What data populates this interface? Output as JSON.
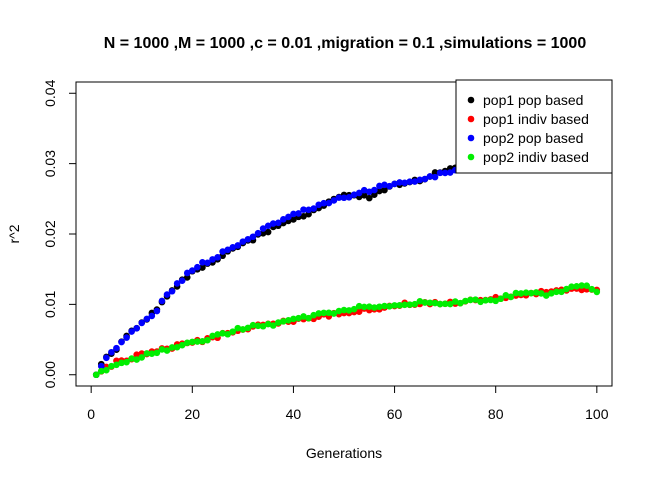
{
  "chart_data": {
    "type": "scatter",
    "title": "N = 1000 ,M = 1000 ,c = 0.01 ,migration = 0.1 ,simulations = 1000",
    "xlabel": "Generations",
    "ylabel": "r^2",
    "xlim": [
      1,
      100
    ],
    "ylim": [
      0,
      0.04
    ],
    "xticks": [
      0,
      20,
      40,
      60,
      80,
      100
    ],
    "yticks": [
      0.0,
      0.01,
      0.02,
      0.03,
      0.04
    ],
    "xtick_labels": [
      "0",
      "20",
      "40",
      "60",
      "80",
      "100"
    ],
    "ytick_labels": [
      "0.00",
      "0.01",
      "0.02",
      "0.03",
      "0.04"
    ],
    "grid": false,
    "legend_position": "top-right",
    "series": [
      {
        "name": "pop1 pop based",
        "color": "#000000",
        "anchors": [
          [
            1,
            0.0
          ],
          [
            2,
            0.0013
          ],
          [
            3,
            0.0025
          ],
          [
            5,
            0.0038
          ],
          [
            8,
            0.006
          ],
          [
            10,
            0.0072
          ],
          [
            13,
            0.0092
          ],
          [
            15,
            0.0113
          ],
          [
            18,
            0.0133
          ],
          [
            20,
            0.0147
          ],
          [
            25,
            0.0165
          ],
          [
            30,
            0.0186
          ],
          [
            35,
            0.0205
          ],
          [
            40,
            0.0219
          ],
          [
            45,
            0.0238
          ],
          [
            50,
            0.0256
          ],
          [
            55,
            0.0252
          ],
          [
            60,
            0.027
          ],
          [
            65,
            0.0276
          ],
          [
            70,
            0.0291
          ],
          [
            75,
            0.0296
          ],
          [
            80,
            0.0305
          ],
          [
            85,
            0.0316
          ],
          [
            90,
            0.0327
          ],
          [
            95,
            0.0337
          ],
          [
            100,
            0.0345
          ]
        ]
      },
      {
        "name": "pop1 indiv based",
        "color": "#ff0000",
        "anchors": [
          [
            1,
            0.0
          ],
          [
            5,
            0.0018
          ],
          [
            10,
            0.0028
          ],
          [
            15,
            0.0038
          ],
          [
            20,
            0.0045
          ],
          [
            25,
            0.0055
          ],
          [
            30,
            0.0065
          ],
          [
            35,
            0.0072
          ],
          [
            40,
            0.0077
          ],
          [
            45,
            0.0083
          ],
          [
            50,
            0.0088
          ],
          [
            55,
            0.0093
          ],
          [
            60,
            0.0098
          ],
          [
            65,
            0.0103
          ],
          [
            70,
            0.0101
          ],
          [
            75,
            0.0104
          ],
          [
            80,
            0.0108
          ],
          [
            85,
            0.0114
          ],
          [
            90,
            0.0117
          ],
          [
            95,
            0.0121
          ],
          [
            100,
            0.0119
          ]
        ]
      },
      {
        "name": "pop2 pop based",
        "color": "#0000ff",
        "anchors": [
          [
            1,
            0.0
          ],
          [
            2,
            0.0013
          ],
          [
            3,
            0.0025
          ],
          [
            5,
            0.0038
          ],
          [
            8,
            0.006
          ],
          [
            10,
            0.0072
          ],
          [
            13,
            0.0092
          ],
          [
            15,
            0.0113
          ],
          [
            18,
            0.0135
          ],
          [
            20,
            0.015
          ],
          [
            22,
            0.0158
          ],
          [
            25,
            0.0168
          ],
          [
            28,
            0.0182
          ],
          [
            30,
            0.0188
          ],
          [
            35,
            0.021
          ],
          [
            40,
            0.0228
          ],
          [
            45,
            0.024
          ],
          [
            50,
            0.0252
          ],
          [
            55,
            0.0262
          ],
          [
            60,
            0.0272
          ],
          [
            65,
            0.0276
          ],
          [
            70,
            0.0287
          ],
          [
            75,
            0.0296
          ],
          [
            80,
            0.0306
          ],
          [
            85,
            0.0318
          ],
          [
            90,
            0.0328
          ],
          [
            95,
            0.0337
          ],
          [
            100,
            0.0345
          ]
        ]
      },
      {
        "name": "pop2 indiv based",
        "color": "#00ee00",
        "anchors": [
          [
            1,
            0.0
          ],
          [
            5,
            0.0016
          ],
          [
            10,
            0.0026
          ],
          [
            15,
            0.0036
          ],
          [
            20,
            0.0045
          ],
          [
            25,
            0.0055
          ],
          [
            30,
            0.0066
          ],
          [
            35,
            0.0071
          ],
          [
            40,
            0.0078
          ],
          [
            45,
            0.0085
          ],
          [
            50,
            0.0092
          ],
          [
            55,
            0.0097
          ],
          [
            60,
            0.0099
          ],
          [
            65,
            0.0103
          ],
          [
            70,
            0.0101
          ],
          [
            75,
            0.0104
          ],
          [
            80,
            0.0107
          ],
          [
            85,
            0.0117
          ],
          [
            90,
            0.0114
          ],
          [
            95,
            0.0123
          ],
          [
            98,
            0.0125
          ],
          [
            100,
            0.0117
          ]
        ]
      }
    ]
  }
}
